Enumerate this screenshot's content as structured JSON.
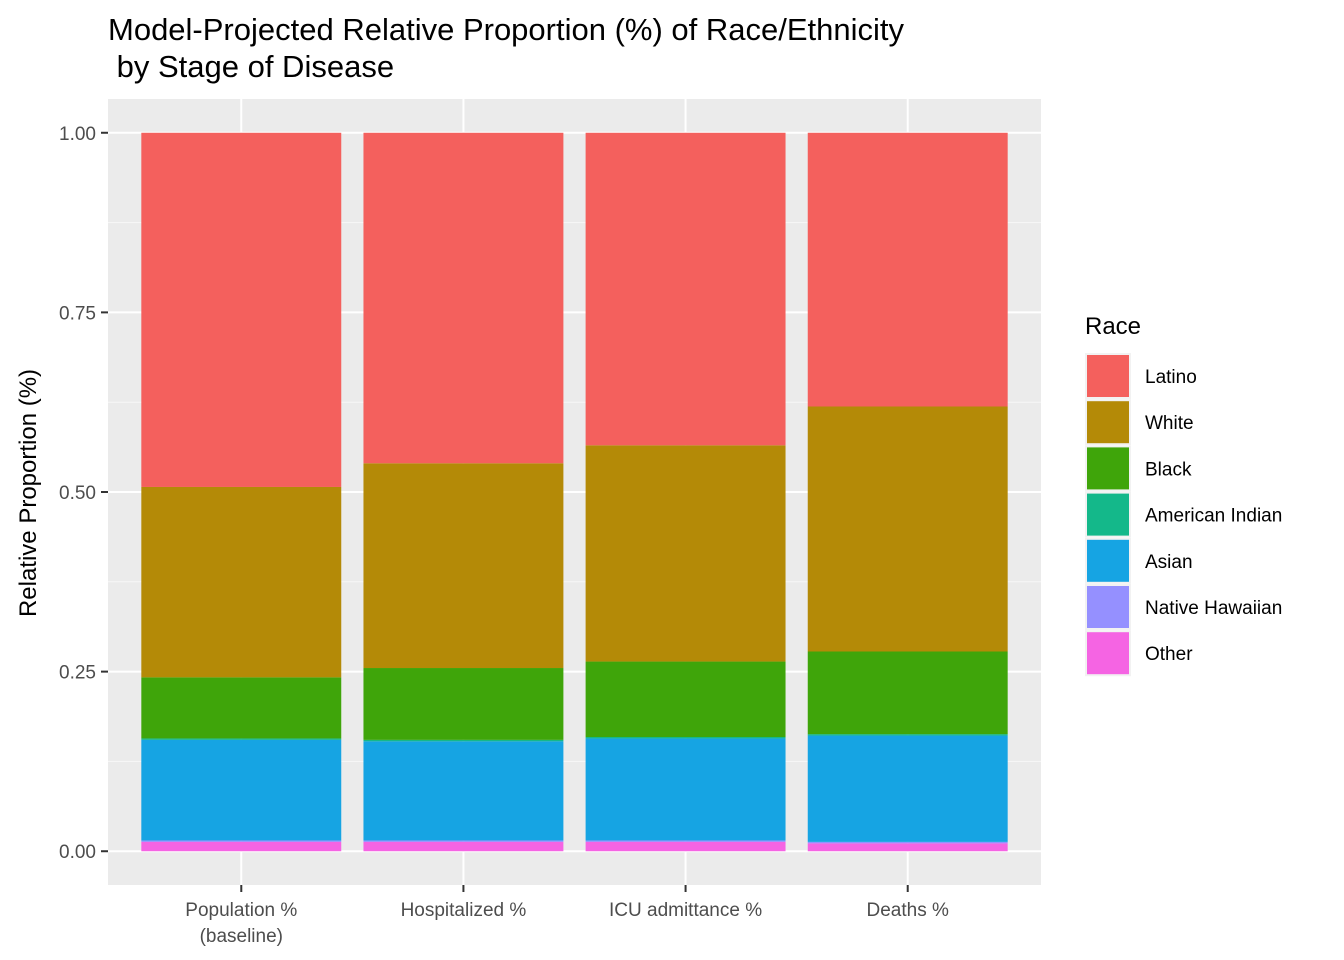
{
  "chart_data": {
    "type": "bar",
    "stacked": true,
    "title_lines": [
      "Model-Projected Relative Proportion (%) of Race/Ethnicity",
      " by Stage of Disease"
    ],
    "xlabel": "",
    "ylabel": "Relative Proportion (%)",
    "ylim": [
      -0.047,
      1.047
    ],
    "yticks": [
      0.0,
      0.25,
      0.5,
      0.75,
      1.0
    ],
    "ytick_labels": [
      "0.00",
      "0.25",
      "0.50",
      "0.75",
      "1.00"
    ],
    "categories": [
      [
        "Population %",
        "(baseline)"
      ],
      [
        "Hospitalized %"
      ],
      [
        "ICU admittance %"
      ],
      [
        "Deaths %"
      ]
    ],
    "legend": {
      "title": "Race",
      "position": "right"
    },
    "grid": true,
    "series": [
      {
        "name": "Other",
        "color": "#F564E3",
        "values": [
          0.013,
          0.013,
          0.013,
          0.011
        ]
      },
      {
        "name": "Native Hawaiian",
        "color": "#9590FF",
        "values": [
          0.002,
          0.002,
          0.002,
          0.002
        ]
      },
      {
        "name": "Asian",
        "color": "#16A4E3",
        "values": [
          0.14,
          0.138,
          0.142,
          0.148
        ]
      },
      {
        "name": "American Indian",
        "color": "#14B88A",
        "values": [
          0.002,
          0.002,
          0.002,
          0.002
        ]
      },
      {
        "name": "Black",
        "color": "#3FA50A",
        "values": [
          0.085,
          0.1,
          0.105,
          0.115
        ]
      },
      {
        "name": "White",
        "color": "#B48A07",
        "values": [
          0.265,
          0.285,
          0.301,
          0.341
        ]
      },
      {
        "name": "Latino",
        "color": "#F4605D",
        "values": [
          0.493,
          0.46,
          0.435,
          0.381
        ]
      }
    ],
    "legend_order": [
      "Latino",
      "White",
      "Black",
      "American Indian",
      "Asian",
      "Native Hawaiian",
      "Other"
    ]
  }
}
